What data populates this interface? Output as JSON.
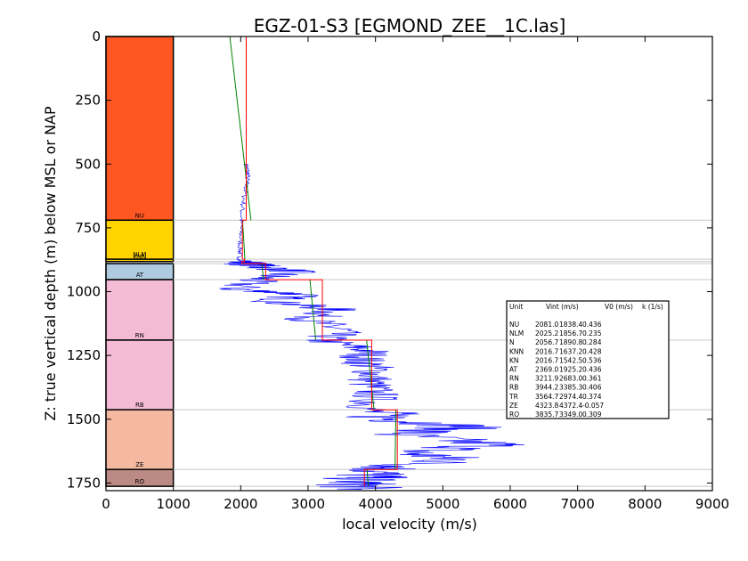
{
  "chart_data": {
    "type": "line",
    "title": "EGZ-01-S3 [EGMOND_ZEE__1C.las]",
    "xlabel": "local velocity (m/s)",
    "ylabel": "Z: true vertical depth (m) below MSL or NAP",
    "xlim": [
      0,
      9000
    ],
    "ylim": [
      1780,
      0
    ],
    "y_inverted": true,
    "xticks": [
      0,
      1000,
      2000,
      3000,
      4000,
      5000,
      6000,
      7000,
      8000,
      9000
    ],
    "yticks": [
      0,
      250,
      500,
      750,
      1000,
      1250,
      1500,
      1750
    ],
    "grid": false,
    "lithology_column": {
      "x_range": [
        0,
        1000
      ],
      "units": [
        {
          "label": "NU",
          "top": 0,
          "base": 720,
          "color": "#ff5722"
        },
        {
          "label": "NLM",
          "top": 720,
          "base": 873,
          "color": "#ffd400"
        },
        {
          "label": "KNN",
          "top": 873,
          "base": 882,
          "color": "#ffd400"
        },
        {
          "label": "AT",
          "top": 890,
          "base": 953,
          "color": "#aecbe0"
        },
        {
          "label": "RN",
          "top": 953,
          "base": 1190,
          "color": "#f4bbd6"
        },
        {
          "label": "RB",
          "top": 1190,
          "base": 1463,
          "color": "#f4bbd6"
        },
        {
          "label": "ZE",
          "top": 1463,
          "base": 1697,
          "color": "#f4b9a0"
        },
        {
          "label": "RO",
          "top": 1697,
          "base": 1763,
          "color": "#bc8a85"
        }
      ]
    },
    "boundaries": [
      720,
      873,
      882,
      890,
      953,
      1190,
      1463,
      1697,
      1763
    ],
    "series": [
      {
        "color": "#0000ff",
        "description_points": [
          [
            2080,
            500
          ],
          [
            2110,
            540
          ],
          [
            2070,
            600
          ],
          [
            2020,
            680
          ],
          [
            2000,
            760
          ],
          [
            1990,
            840
          ],
          [
            1980,
            880
          ],
          [
            2250,
            900
          ],
          [
            2800,
            920
          ],
          [
            2250,
            950
          ],
          [
            1900,
            990
          ],
          [
            2900,
            1010
          ],
          [
            2500,
            1040
          ],
          [
            3400,
            1070
          ],
          [
            3000,
            1110
          ],
          [
            3500,
            1150
          ],
          [
            3200,
            1190
          ],
          [
            3900,
            1230
          ],
          [
            3800,
            1270
          ],
          [
            4000,
            1310
          ],
          [
            3900,
            1360
          ],
          [
            4000,
            1410
          ],
          [
            3900,
            1460
          ],
          [
            4200,
            1500
          ],
          [
            5400,
            1530
          ],
          [
            4300,
            1560
          ],
          [
            5800,
            1600
          ],
          [
            4500,
            1630
          ],
          [
            5200,
            1660
          ],
          [
            4200,
            1690
          ],
          [
            3900,
            1720
          ],
          [
            3700,
            1750
          ],
          [
            3800,
            1775
          ]
        ]
      },
      {
        "color": "#ff0000",
        "steps": [
          {
            "top": 0,
            "base": 720,
            "v": 2081.0
          },
          {
            "top": 720,
            "base": 873,
            "v": 2025.2
          },
          {
            "top": 873,
            "base": 882,
            "v": 2056.7
          },
          {
            "top": 882,
            "base": 890,
            "v": 2016.7
          },
          {
            "top": 890,
            "base": 953,
            "v": 2369.0
          },
          {
            "top": 953,
            "base": 1190,
            "v": 3211.9
          },
          {
            "top": 1190,
            "base": 1463,
            "v": 3944.2
          },
          {
            "top": 1463,
            "base": 1697,
            "v": 4323.8
          },
          {
            "top": 1697,
            "base": 1763,
            "v": 3835.7
          }
        ]
      },
      {
        "color": "#008000",
        "segments": [
          {
            "top": 0,
            "base": 720,
            "v_top": 1838.4,
            "v_base": 2152
          },
          {
            "top": 720,
            "base": 873,
            "v_top": 2026,
            "v_base": 2062
          },
          {
            "top": 890,
            "base": 953,
            "v_top": 2312,
            "v_base": 2339
          },
          {
            "top": 953,
            "base": 1190,
            "v_top": 3027,
            "v_base": 3113
          },
          {
            "top": 1190,
            "base": 1463,
            "v_top": 3868,
            "v_base": 3979
          },
          {
            "top": 1463,
            "base": 1697,
            "v_top": 4303,
            "v_base": 4290
          },
          {
            "top": 1697,
            "base": 1763,
            "v_top": 3874,
            "v_base": 3894
          }
        ]
      }
    ],
    "table": {
      "headers": [
        "Unit",
        "Vint (m/s)",
        "V0 (m/s)",
        "k (1/s)"
      ],
      "rows": [
        [
          "NU",
          "2081.0",
          "1838.4",
          "0.436"
        ],
        [
          "NLM",
          "2025.2",
          "1856.7",
          "0.235"
        ],
        [
          "N",
          "2056.7",
          "1890.8",
          "0.284"
        ],
        [
          "KNN",
          "2016.7",
          "1637.2",
          "0.428"
        ],
        [
          "KN",
          "2016.7",
          "1542.5",
          "0.536"
        ],
        [
          "AT",
          "2369.0",
          "1925.2",
          "0.436"
        ],
        [
          "RN",
          "3211.9",
          "2683.0",
          "0.361"
        ],
        [
          "RB",
          "3944.2",
          "3385.3",
          "0.406"
        ],
        [
          "TR",
          "3564.7",
          "2974.4",
          "0.374"
        ],
        [
          "ZE",
          "4323.8",
          "4372.4",
          "-0.057"
        ],
        [
          "RO",
          "3835.7",
          "3349.0",
          "0.309"
        ]
      ]
    }
  }
}
